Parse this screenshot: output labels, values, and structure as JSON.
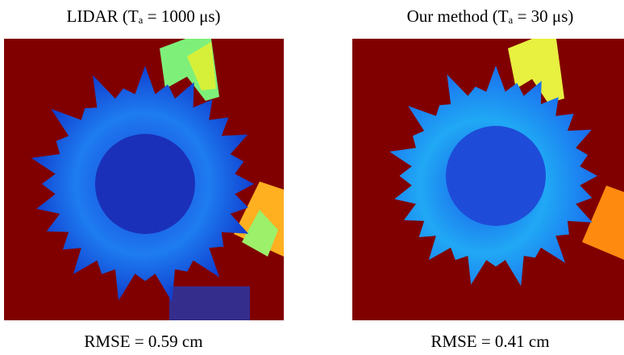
{
  "panels": [
    {
      "title": "LIDAR (Tₐ = 1000 μs)",
      "caption": "RMSE = 0.59 cm"
    },
    {
      "title": "Our method (Tₐ = 30 μs)",
      "caption": "RMSE = 0.41 cm"
    }
  ]
}
